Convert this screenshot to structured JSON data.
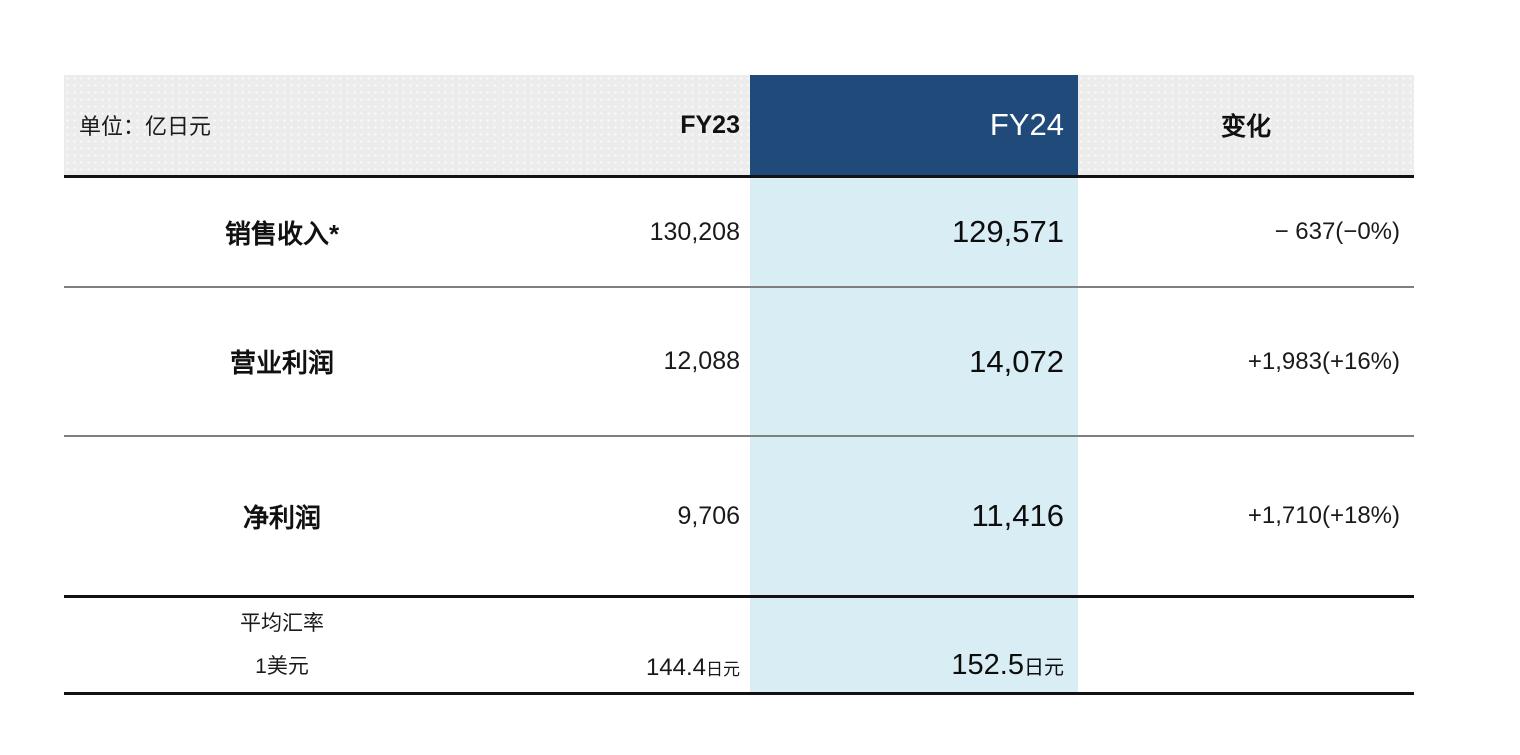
{
  "table": {
    "unit_label": "单位：亿日元",
    "columns": {
      "fy23": "FY23",
      "fy24": "FY24",
      "change": "变化"
    },
    "rows": [
      {
        "label": "销售收入*",
        "fy23": "130,208",
        "fy24": "129,571",
        "change": "− 637(−0%)"
      },
      {
        "label": "营业利润",
        "fy23": "12,088",
        "fy24": "14,072",
        "change": "+1,983(+16%)"
      },
      {
        "label": "净利润",
        "fy23": "9,706",
        "fy24": "11,416",
        "change": "+1,710(+18%)"
      }
    ],
    "fx": {
      "label_line1": "平均汇率",
      "label_line2": "1美元",
      "fy23_value": "144.4",
      "fy23_unit": "日元",
      "fy24_value": "152.5",
      "fy24_unit": "日元",
      "change": ""
    },
    "colors": {
      "header_bg": "#ececec",
      "fy24_header_bg": "#1f4a7a",
      "fy24_header_text": "#ffffff",
      "fy24_column_bg": "#d9edf4",
      "black_rule": "#121212",
      "gray_rule": "#7f7f7f"
    }
  },
  "chart_data": {
    "type": "table",
    "title": "",
    "unit": "单位：亿日元 (unit: 100 million yen)",
    "columns": [
      "",
      "FY23",
      "FY24",
      "变化"
    ],
    "rows": [
      [
        "销售收入*",
        "130,208",
        "129,571",
        "− 637(−0%)"
      ],
      [
        "营业利润",
        "12,088",
        "14,072",
        "+1,983(+16%)"
      ],
      [
        "净利润",
        "9,706",
        "11,416",
        "+1,710(+18%)"
      ],
      [
        "平均汇率 1美元",
        "144.4日元",
        "152.5日元",
        ""
      ]
    ],
    "numeric": {
      "fy23": {
        "sales_revenue": 130208,
        "operating_profit": 12088,
        "net_profit": 9706,
        "usd_jpy_avg_rate": 144.4
      },
      "fy24": {
        "sales_revenue": 129571,
        "operating_profit": 14072,
        "net_profit": 11416,
        "usd_jpy_avg_rate": 152.5
      },
      "change": {
        "sales_revenue": -637,
        "sales_revenue_pct": "-0%",
        "operating_profit": 1983,
        "operating_profit_pct": "+16%",
        "net_profit": 1710,
        "net_profit_pct": "+18%"
      }
    },
    "highlight_column": "FY24",
    "layout": "FY24 column emphasized with dark blue header and light blue body"
  }
}
